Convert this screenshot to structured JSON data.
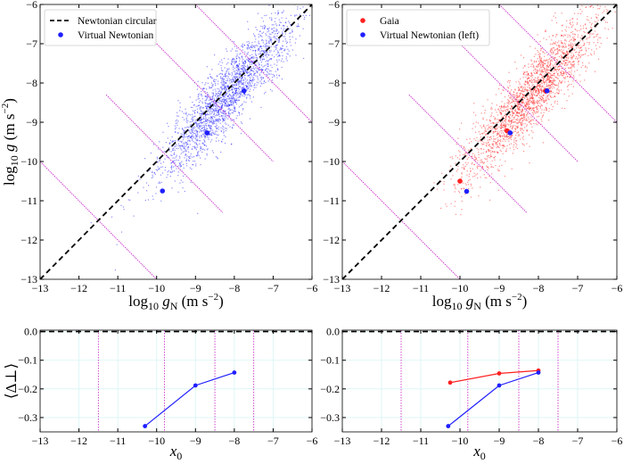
{
  "chart_data": [
    {
      "type": "scatter",
      "panel": "top-left",
      "xlabel": "log10 gN (m s^-2)",
      "ylabel": "log10 g (m s^-2)",
      "xlim": [
        -13,
        -6
      ],
      "ylim": [
        -13,
        -6
      ],
      "xticks": [
        "−13",
        "−12",
        "−11",
        "−10",
        "−9",
        "−8",
        "−7",
        "−6"
      ],
      "yticks": [
        "−13",
        "−12",
        "−11",
        "−10",
        "−9",
        "−8",
        "−7",
        "−6"
      ],
      "legend": {
        "placement": "top-left",
        "entries": [
          "Newtonian circular",
          "Virtual Newtonian"
        ]
      },
      "reference_line": {
        "name": "Newtonian circular",
        "slope": 1,
        "intercept": 0,
        "color": "#000000",
        "style": "dashed"
      },
      "bin_boundaries_x0": [
        -11.5,
        -9.8,
        -8.5,
        -7.5
      ],
      "cloud": {
        "color": "#0000ff",
        "center": [
          -8.2,
          -8.3
        ]
      },
      "series": [
        {
          "name": "Virtual Newtonian",
          "color": "#1f1fff",
          "x": [
            -9.85,
            -8.7,
            -7.75
          ],
          "y": [
            -10.75,
            -9.27,
            -8.2
          ]
        }
      ]
    },
    {
      "type": "scatter",
      "panel": "top-right",
      "xlabel": "log10 gN (m s^-2)",
      "xlim": [
        -13,
        -6
      ],
      "ylim": [
        -13,
        -6
      ],
      "xticks": [
        "−13",
        "−12",
        "−11",
        "−10",
        "−9",
        "−8",
        "−7",
        "−6"
      ],
      "yticks": [
        "−13",
        "−12",
        "−11",
        "−10",
        "−9",
        "−8",
        "−7",
        "−6"
      ],
      "legend": {
        "placement": "top-left",
        "entries": [
          "Gaia",
          "Virtual Newtonian (left)"
        ]
      },
      "bin_boundaries_x0": [
        -11.5,
        -9.8,
        -8.5,
        -7.5
      ],
      "cloud": {
        "color": "#ff0000",
        "center": [
          -8.2,
          -8.3
        ]
      },
      "series": [
        {
          "name": "Gaia",
          "color": "#ff2020",
          "x": [
            -10.0,
            -8.8,
            -7.82
          ],
          "y": [
            -10.5,
            -9.22,
            -8.2
          ]
        },
        {
          "name": "Virtual Newtonian (left)",
          "color": "#1f1fff",
          "x": [
            -9.83,
            -8.72,
            -7.78
          ],
          "y": [
            -10.76,
            -9.27,
            -8.2
          ]
        }
      ]
    },
    {
      "type": "line",
      "panel": "bottom-left",
      "xlabel": "x0",
      "ylabel": "⟨Δ⊥⟩",
      "xlim": [
        -13,
        -6
      ],
      "ylim": [
        -0.35,
        0.005
      ],
      "xticks": [
        "−13",
        "−12",
        "−11",
        "−10",
        "−9",
        "−8",
        "−7",
        "−6"
      ],
      "yticks": [
        {
          "v": 0.0,
          "l": "0.0"
        },
        {
          "v": -0.1,
          "l": "−0.1"
        },
        {
          "v": -0.2,
          "l": "−0.2"
        },
        {
          "v": -0.3,
          "l": "−0.3"
        }
      ],
      "grid": true,
      "bin_boundaries_x0": [
        -11.5,
        -9.8,
        -8.5,
        -7.5
      ],
      "series": [
        {
          "color": "#1f1fff",
          "x": [
            -10.3,
            -9.0,
            -8.0
          ],
          "y": [
            -0.33,
            -0.188,
            -0.143
          ]
        }
      ]
    },
    {
      "type": "line",
      "panel": "bottom-right",
      "xlabel": "x0",
      "xlim": [
        -13,
        -6
      ],
      "ylim": [
        -0.35,
        0.005
      ],
      "xticks": [
        "−13",
        "−12",
        "−11",
        "−10",
        "−9",
        "−8",
        "−7",
        "−6"
      ],
      "yticks": [
        {
          "v": 0.0,
          "l": "0.0"
        },
        {
          "v": -0.1,
          "l": "−0.1"
        },
        {
          "v": -0.2,
          "l": "−0.2"
        },
        {
          "v": -0.3,
          "l": "−0.3"
        }
      ],
      "grid": true,
      "bin_boundaries_x0": [
        -11.5,
        -9.8,
        -8.5,
        -7.5
      ],
      "series": [
        {
          "color": "#ff2020",
          "x": [
            -10.25,
            -9.0,
            -8.0
          ],
          "y": [
            -0.178,
            -0.146,
            -0.136
          ]
        },
        {
          "color": "#1f1fff",
          "x": [
            -10.3,
            -9.0,
            -8.0
          ],
          "y": [
            -0.33,
            -0.188,
            -0.143
          ]
        }
      ]
    }
  ]
}
